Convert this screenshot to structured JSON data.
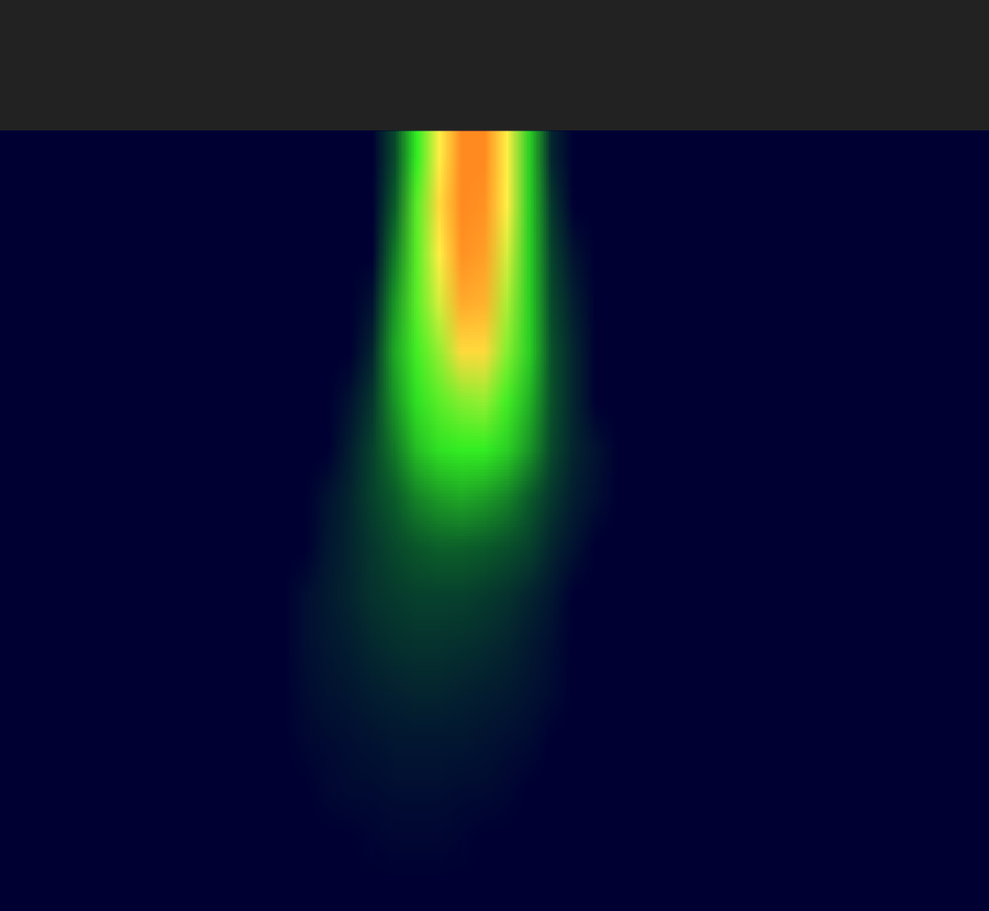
{
  "chart_data": {
    "type": "heatmap",
    "tick_labels": false,
    "values": [
      [
        0,
        0,
        0,
        0,
        0,
        0,
        0,
        0,
        0,
        0,
        0,
        0,
        0,
        0,
        0,
        0,
        0,
        20,
        50,
        75,
        100,
        100,
        75,
        45,
        10,
        0,
        0,
        0,
        0,
        0,
        0,
        0,
        0,
        0,
        0,
        0,
        0,
        0,
        0,
        0,
        0,
        0,
        0,
        0
      ],
      [
        0,
        0,
        0,
        0,
        0,
        0,
        0,
        0,
        0,
        0,
        0,
        0,
        0,
        0,
        0,
        0,
        0,
        25,
        55,
        80,
        100,
        98,
        75,
        45,
        15,
        0,
        0,
        0,
        0,
        0,
        0,
        0,
        0,
        0,
        0,
        0,
        0,
        0,
        0,
        0,
        0,
        0,
        0,
        0
      ],
      [
        0,
        0,
        0,
        0,
        0,
        0,
        0,
        0,
        0,
        0,
        0,
        0,
        0,
        0,
        0,
        0,
        0,
        30,
        55,
        75,
        98,
        95,
        70,
        45,
        18,
        5,
        0,
        0,
        0,
        0,
        0,
        0,
        0,
        0,
        0,
        0,
        0,
        0,
        0,
        0,
        0,
        0,
        0,
        0
      ],
      [
        0,
        0,
        0,
        0,
        0,
        0,
        0,
        0,
        0,
        0,
        0,
        0,
        0,
        0,
        0,
        0,
        5,
        35,
        55,
        70,
        92,
        90,
        65,
        45,
        20,
        8,
        0,
        0,
        0,
        0,
        0,
        0,
        0,
        0,
        0,
        0,
        0,
        0,
        0,
        0,
        0,
        0,
        0,
        0
      ],
      [
        0,
        0,
        0,
        0,
        0,
        0,
        0,
        0,
        0,
        0,
        0,
        0,
        0,
        0,
        0,
        0,
        10,
        38,
        52,
        62,
        80,
        80,
        60,
        45,
        22,
        10,
        0,
        0,
        0,
        0,
        0,
        0,
        0,
        0,
        0,
        0,
        0,
        0,
        0,
        0,
        0,
        0,
        0,
        0
      ],
      [
        0,
        0,
        0,
        0,
        0,
        0,
        0,
        0,
        0,
        0,
        0,
        0,
        0,
        0,
        0,
        5,
        15,
        35,
        48,
        55,
        60,
        62,
        52,
        40,
        22,
        10,
        0,
        0,
        0,
        0,
        0,
        0,
        0,
        0,
        0,
        0,
        0,
        0,
        0,
        0,
        0,
        0,
        0,
        0
      ],
      [
        0,
        0,
        0,
        0,
        0,
        0,
        0,
        0,
        0,
        0,
        0,
        0,
        0,
        0,
        0,
        8,
        18,
        30,
        42,
        48,
        50,
        50,
        45,
        35,
        20,
        10,
        5,
        0,
        0,
        0,
        0,
        0,
        0,
        0,
        0,
        0,
        0,
        0,
        0,
        0,
        0,
        0,
        0,
        0
      ],
      [
        0,
        0,
        0,
        0,
        0,
        0,
        0,
        0,
        0,
        0,
        0,
        0,
        0,
        0,
        5,
        10,
        18,
        25,
        32,
        36,
        38,
        36,
        32,
        25,
        15,
        8,
        4,
        0,
        0,
        0,
        0,
        0,
        0,
        0,
        0,
        0,
        0,
        0,
        0,
        0,
        0,
        0,
        0,
        0
      ],
      [
        0,
        0,
        0,
        0,
        0,
        0,
        0,
        0,
        0,
        0,
        0,
        0,
        0,
        0,
        6,
        10,
        15,
        20,
        24,
        26,
        26,
        25,
        22,
        18,
        10,
        5,
        0,
        0,
        0,
        0,
        0,
        0,
        0,
        0,
        0,
        0,
        0,
        0,
        0,
        0,
        0,
        0,
        0,
        0
      ],
      [
        0,
        0,
        0,
        0,
        0,
        0,
        0,
        0,
        0,
        0,
        0,
        0,
        0,
        4,
        7,
        10,
        14,
        16,
        18,
        18,
        18,
        16,
        14,
        10,
        6,
        0,
        0,
        0,
        0,
        0,
        0,
        0,
        0,
        0,
        0,
        0,
        0,
        0,
        0,
        0,
        0,
        0,
        0,
        0
      ],
      [
        0,
        0,
        0,
        0,
        0,
        0,
        0,
        0,
        0,
        0,
        0,
        0,
        0,
        4,
        6,
        8,
        11,
        13,
        14,
        14,
        13,
        12,
        10,
        7,
        4,
        0,
        0,
        0,
        0,
        0,
        0,
        0,
        0,
        0,
        0,
        0,
        0,
        0,
        0,
        0,
        0,
        0,
        0,
        0
      ],
      [
        0,
        0,
        0,
        0,
        0,
        0,
        0,
        0,
        0,
        0,
        0,
        0,
        0,
        3,
        5,
        6,
        8,
        9,
        10,
        10,
        9,
        8,
        7,
        5,
        3,
        0,
        0,
        0,
        0,
        0,
        0,
        0,
        0,
        0,
        0,
        0,
        0,
        0,
        0,
        0,
        0,
        0,
        0,
        0
      ],
      [
        0,
        0,
        0,
        0,
        0,
        0,
        0,
        0,
        0,
        0,
        0,
        0,
        0,
        2,
        3,
        4,
        5,
        6,
        6,
        6,
        6,
        5,
        4,
        3,
        0,
        0,
        0,
        0,
        0,
        0,
        0,
        0,
        0,
        0,
        0,
        0,
        0,
        0,
        0,
        0,
        0,
        0,
        0,
        0
      ],
      [
        0,
        0,
        0,
        0,
        0,
        0,
        0,
        0,
        0,
        0,
        0,
        0,
        0,
        0,
        2,
        3,
        3,
        4,
        4,
        4,
        3,
        3,
        2,
        0,
        0,
        0,
        0,
        0,
        0,
        0,
        0,
        0,
        0,
        0,
        0,
        0,
        0,
        0,
        0,
        0,
        0,
        0,
        0,
        0
      ],
      [
        0,
        0,
        0,
        0,
        0,
        0,
        0,
        0,
        0,
        0,
        0,
        0,
        0,
        0,
        0,
        0,
        1,
        2,
        2,
        2,
        1,
        0,
        0,
        0,
        0,
        0,
        0,
        0,
        0,
        0,
        0,
        0,
        0,
        0,
        0,
        0,
        0,
        0,
        0,
        0,
        0,
        0,
        0,
        0
      ],
      [
        0,
        0,
        0,
        0,
        0,
        0,
        0,
        0,
        0,
        0,
        0,
        0,
        0,
        0,
        0,
        0,
        0,
        0,
        0,
        0,
        0,
        0,
        0,
        0,
        0,
        0,
        0,
        0,
        0,
        0,
        0,
        0,
        0,
        0,
        0,
        0,
        0,
        0,
        0,
        0,
        0,
        0,
        0,
        0
      ]
    ]
  }
}
